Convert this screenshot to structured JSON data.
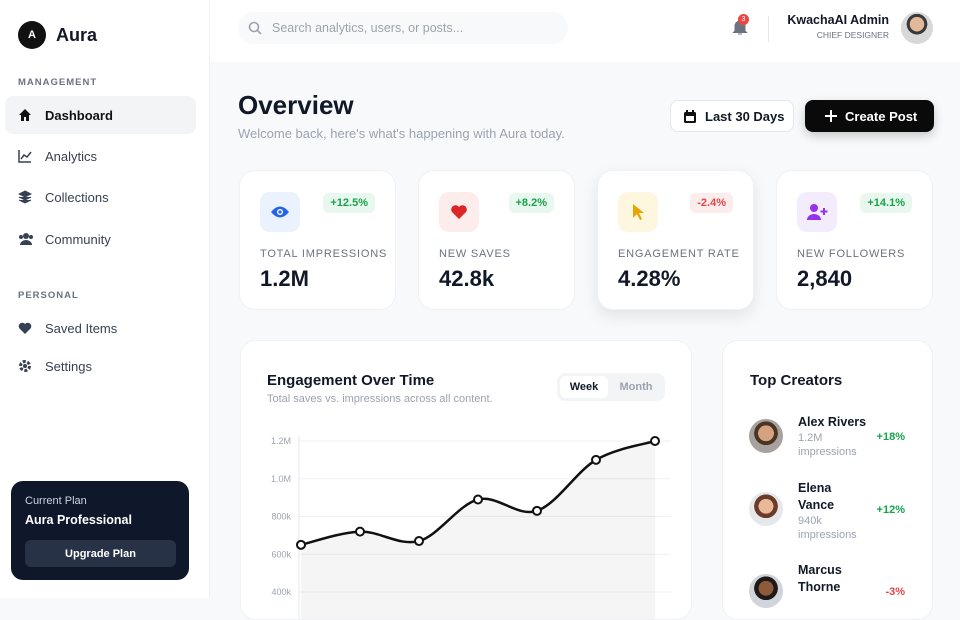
{
  "brand": {
    "logo": "A",
    "name": "Aura"
  },
  "sidebar": [
    {
      "heading": "MANAGEMENT",
      "items": [
        "Dashboard",
        "Analytics",
        "Collections",
        "Community"
      ]
    },
    {
      "heading": "PERSONAL",
      "items": [
        "Saved Items",
        "Settings"
      ]
    }
  ],
  "plan": {
    "label": "Current Plan",
    "name": "Aura Professional",
    "button": "Upgrade Plan"
  },
  "topbar": {
    "search_placeholder": "Search analytics, users, or posts...",
    "notifications": "3",
    "user_name": "KwachaAI Admin",
    "user_role": "CHIEF DESIGNER"
  },
  "header": {
    "title": "Overview",
    "subtitle": "Welcome back, here's what's happening with Aura today.",
    "range_button": "Last 30 Days",
    "create_button": "Create Post"
  },
  "stats": [
    {
      "label": "TOTAL IMPRESSIONS",
      "value": "1.2M",
      "change": "+12.5%"
    },
    {
      "label": "NEW SAVES",
      "value": "42.8k",
      "change": "+8.2%"
    },
    {
      "label": "ENGAGEMENT RATE",
      "value": "4.28%",
      "change": "-2.4%"
    },
    {
      "label": "NEW FOLLOWERS",
      "value": "2,840",
      "change": "+14.1%"
    }
  ],
  "chart_toggle": [
    "Week",
    "Month"
  ],
  "chart_data": {
    "type": "line",
    "title": "Engagement Over Time",
    "subtitle": "Total saves vs. impressions across all content.",
    "categories": [
      null,
      null,
      null,
      null,
      null,
      null,
      null
    ],
    "series": [
      {
        "name": null,
        "color": "#111111",
        "values": [
          650000,
          720000,
          670000,
          890000,
          830000,
          1100000,
          1200000
        ]
      }
    ],
    "ylim": [
      400000,
      1200000
    ],
    "yticks": [
      {
        "value": 1200000,
        "label": "1.2M"
      },
      {
        "value": 1000000,
        "label": "1.0M"
      },
      {
        "value": 800000,
        "label": "800k"
      },
      {
        "value": 600000,
        "label": "600k"
      },
      {
        "value": 400000,
        "label": "400k"
      }
    ],
    "grid": true
  },
  "creators": {
    "title": "Top Creators",
    "items": [
      {
        "name": "Alex Rivers",
        "stat": "1.2M impressions",
        "change": "+18%"
      },
      {
        "name": "Elena Vance",
        "stat": "940k impressions",
        "change": "+12%"
      },
      {
        "name": "Marcus Thorne",
        "change": "-3%"
      }
    ]
  }
}
